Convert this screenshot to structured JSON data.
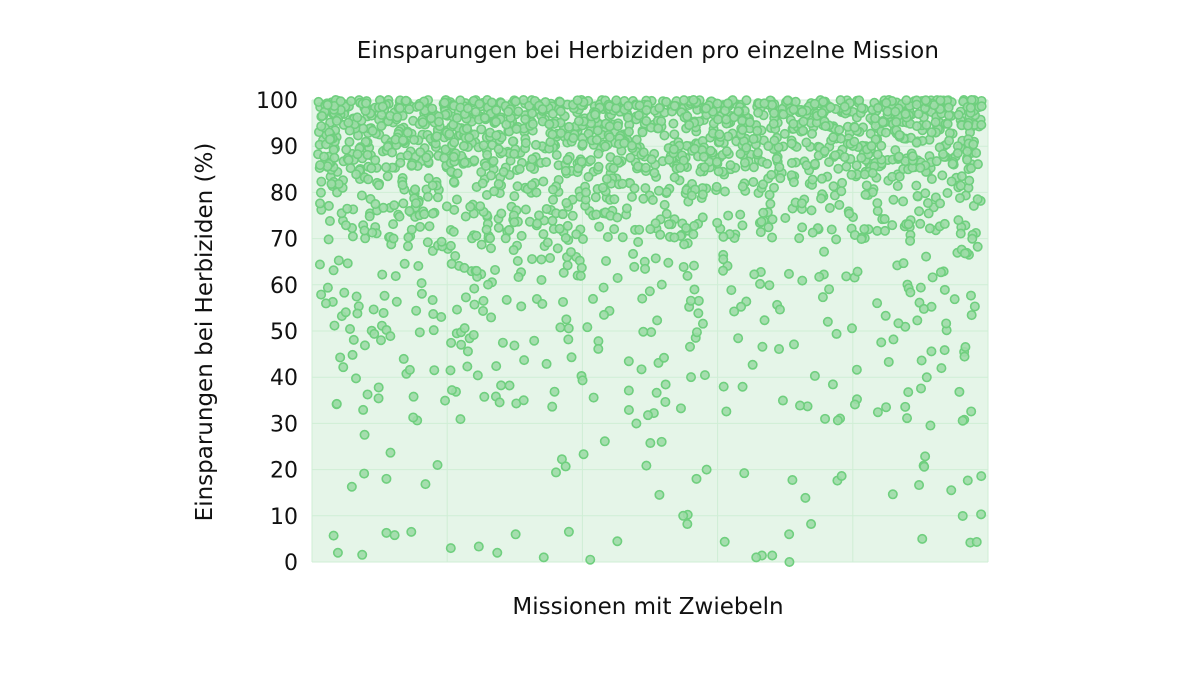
{
  "chart_data": {
    "type": "scatter",
    "title": "Einsparungen bei Herbiziden pro einzelne Mission",
    "xlabel": "Missionen mit Zwiebeln",
    "ylabel": "Einsparungen bei Herbiziden (%)",
    "ylim": [
      0,
      100
    ],
    "yticks": [
      0,
      10,
      20,
      30,
      40,
      50,
      60,
      70,
      80,
      90,
      100
    ],
    "x_tick_labels_shown": false,
    "grid": true,
    "legend": "none",
    "point_count_approx": 2000,
    "distribution": {
      "bands": [
        {
          "range": [
            85,
            100
          ],
          "share": 0.6
        },
        {
          "range": [
            70,
            85
          ],
          "share": 0.22
        },
        {
          "range": [
            50,
            70
          ],
          "share": 0.1
        },
        {
          "range": [
            30,
            50
          ],
          "share": 0.05
        },
        {
          "range": [
            0,
            30
          ],
          "share": 0.03
        }
      ]
    },
    "sample_low_points": [
      {
        "x": 3,
        "y": 2
      },
      {
        "x": 20,
        "y": 3
      },
      {
        "x": 27,
        "y": 2
      },
      {
        "x": 34,
        "y": 1
      },
      {
        "x": 41,
        "y": 0.5
      },
      {
        "x": 55,
        "y": 10
      },
      {
        "x": 66,
        "y": 1
      },
      {
        "x": 71,
        "y": 0
      },
      {
        "x": 91,
        "y": 5
      },
      {
        "x": 57,
        "y": 18
      },
      {
        "x": 18,
        "y": 21
      }
    ]
  },
  "colors": {
    "plot_background": "#e5f5e8",
    "point_fill": "#9ddca7",
    "point_stroke": "#6fcf7e",
    "grid": "#cfeed5"
  }
}
